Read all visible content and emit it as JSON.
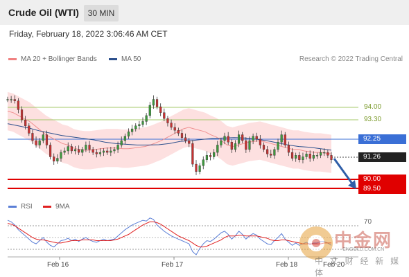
{
  "header": {
    "title": "Crude Oil (WTI)",
    "timeframe": "30 MIN"
  },
  "timestamp": "Friday, February 18, 2022 3:06:46 AM CET",
  "legend": {
    "bollinger": {
      "label": "MA 20 + Bollinger Bands",
      "color": "#f08080"
    },
    "ma50": {
      "label": "MA 50",
      "color": "#2b4f8c"
    }
  },
  "credit": "Research © 2022 Trading Central",
  "rsi_legend": {
    "rsi": {
      "label": "RSI",
      "color": "#5b7fd6"
    },
    "ma9": {
      "label": "9MA",
      "color": "#e02020"
    }
  },
  "levels": {
    "r2": "94.00",
    "r1": "93.30",
    "pivot": "92.25",
    "last": "91.26",
    "s1": "90.00",
    "s2": "89.50"
  },
  "rsi_tick": "70",
  "x_ticks": [
    "Feb 16",
    "Feb 17",
    "Feb 18",
    "Feb 20"
  ],
  "watermark": {
    "brand": "中金网",
    "site": "CNGOLD.COM.CN",
    "tagline": "中 文 财 经 新 媒 体"
  },
  "chart_data": [
    {
      "type": "line",
      "title": "",
      "ylim": [
        88.7,
        96.6
      ],
      "x_ticks": [
        "Feb 16",
        "Feb 17",
        "Feb 18",
        "Feb 20"
      ],
      "series": [
        {
          "name": "Price",
          "values": [
            95.4,
            95.4,
            95.3,
            94.7,
            94.0,
            93.6,
            93.1,
            92.6,
            92.3,
            92.6,
            93.0,
            92.3,
            91.5,
            91.2,
            91.4,
            91.8,
            91.9,
            92.2,
            91.9,
            92.0,
            91.8,
            92.0,
            92.3,
            92.0,
            91.8,
            91.7,
            91.8,
            91.9,
            91.8,
            91.9,
            92.0,
            92.3,
            92.6,
            92.9,
            93.2,
            93.4,
            93.6,
            93.7,
            93.9,
            94.3,
            95.0,
            95.4,
            94.9,
            94.5,
            94.1,
            93.8,
            93.5,
            93.3,
            93.1,
            92.8,
            92.6,
            92.4,
            91.0,
            90.5,
            90.9,
            91.3,
            91.6,
            91.5,
            91.8,
            92.3,
            92.6,
            92.9,
            92.5,
            92.0,
            92.4,
            93.0,
            92.6,
            92.0,
            92.6,
            92.9,
            92.7,
            92.3,
            92.0,
            91.7,
            91.6,
            92.0,
            92.5,
            93.0,
            92.3,
            91.8,
            91.4,
            91.6,
            91.3,
            91.5,
            91.7,
            91.4,
            91.6,
            91.6,
            91.8,
            91.8,
            91.6,
            91.3
          ]
        },
        {
          "name": "MA 20",
          "values": [
            94.6,
            94.5,
            94.3,
            94.1,
            93.9,
            93.6,
            93.3,
            93.0,
            92.8,
            92.6,
            92.4,
            92.3,
            92.1,
            92.0,
            91.95,
            91.95,
            92.0,
            92.05,
            92.1,
            92.1,
            92.1,
            92.05,
            92.05,
            92.1,
            92.15,
            92.2,
            92.3,
            92.45,
            92.6,
            92.8,
            93.0,
            93.2,
            93.4,
            93.5,
            93.4,
            93.3,
            93.2,
            93.0,
            92.85,
            92.6,
            92.3,
            92.2,
            92.3,
            92.4,
            92.5,
            92.55,
            92.6,
            92.5,
            92.4,
            92.3,
            92.2,
            92.1,
            92.0,
            92.0,
            91.9,
            91.85,
            91.8,
            91.8,
            91.75,
            91.7
          ]
        },
        {
          "name": "MA 50",
          "values": [
            93.75,
            93.6,
            93.45,
            93.25,
            93.1,
            92.95,
            92.85,
            92.75,
            92.65,
            92.5,
            92.4,
            92.35,
            92.3,
            92.3,
            92.32,
            92.4,
            92.55,
            92.6,
            92.68,
            92.75,
            92.78,
            92.8,
            92.78,
            92.7,
            92.6,
            92.45,
            92.3,
            92.2,
            92.15,
            92.05,
            91.95
          ]
        }
      ],
      "levels": {
        "resistance_2": 94.0,
        "resistance_1": 93.3,
        "pivot": 92.25,
        "last": 91.26,
        "support_1": 90.0,
        "support_2": 89.5
      },
      "projection": {
        "from": 91.3,
        "to": 89.75
      },
      "colors": {
        "bands": "#fde0e0",
        "pivot": "#3a6fd6",
        "support": "#e00000",
        "resistance": "#a4c96a",
        "arrow": "#2f5ea8"
      }
    },
    {
      "type": "line",
      "ylim": [
        20,
        80
      ],
      "series": [
        {
          "name": "RSI",
          "values": [
            72,
            70,
            66,
            60,
            56,
            52,
            48,
            44,
            42,
            46,
            50,
            44,
            40,
            38,
            42,
            46,
            47,
            49,
            46,
            48,
            45,
            48,
            50,
            47,
            45,
            44,
            46,
            48,
            46,
            47,
            48,
            52,
            56,
            60,
            63,
            66,
            68,
            70,
            72,
            71,
            75,
            73,
            66,
            62,
            58,
            55,
            52,
            50,
            48,
            46,
            44,
            42,
            32,
            28,
            36,
            42,
            46,
            45,
            48,
            52,
            56,
            58,
            54,
            48,
            52,
            58,
            54,
            48,
            52,
            55,
            53,
            48,
            45,
            42,
            41,
            46,
            50,
            55,
            48,
            44,
            40,
            43,
            40,
            42,
            44,
            41,
            43,
            43,
            45,
            45,
            43,
            40
          ]
        },
        {
          "name": "9MA",
          "values": [
            68,
            67,
            65,
            62,
            59,
            56,
            53,
            50,
            48,
            47,
            47,
            46,
            45,
            44,
            43,
            43,
            44,
            45,
            46,
            46,
            46,
            47,
            47,
            47,
            47,
            46,
            46,
            46,
            46,
            46,
            47,
            48,
            50,
            52,
            54,
            57,
            60,
            63,
            66,
            68,
            70,
            70,
            69,
            67,
            64,
            61,
            58,
            55,
            52,
            50,
            48,
            46,
            43,
            40,
            38,
            38,
            39,
            41,
            43,
            45,
            47,
            50,
            52,
            52,
            52,
            53,
            53,
            52,
            52,
            52,
            52,
            51,
            50,
            49,
            47,
            46,
            46,
            47,
            47,
            46,
            45,
            44,
            43,
            42,
            42,
            42,
            42,
            42,
            42,
            43,
            43,
            43
          ]
        }
      ],
      "levels": {
        "overbought": 70
      }
    }
  ]
}
